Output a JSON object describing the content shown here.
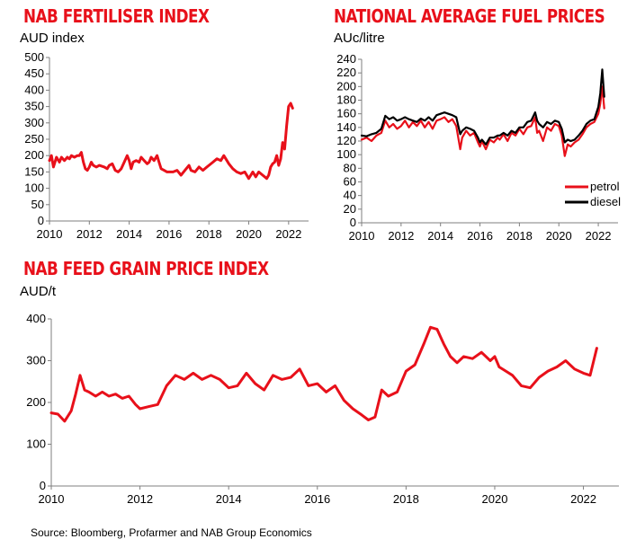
{
  "charts": [
    {
      "title": "NAB FERTILISER INDEX",
      "unit": "AUD index"
    },
    {
      "title": "NATIONAL AVERAGE FUEL PRICES",
      "unit": "AUc/litre"
    },
    {
      "title": "NAB FEED GRAIN PRICE INDEX",
      "unit": "AUD/t"
    }
  ],
  "source": "Source: Bloomberg, Profarmer and NAB Group Economics",
  "colors": {
    "title": "#e8101a",
    "series_red": "#e8101a",
    "series_black": "#000000",
    "axis": "#7f7f7f"
  },
  "chart_data": [
    {
      "type": "line",
      "title": "NAB FERTILISER INDEX",
      "ylabel": "AUD index",
      "xlim": [
        2010,
        2023
      ],
      "ylim": [
        0,
        500
      ],
      "x_ticks": [
        "2010",
        "2012",
        "2014",
        "2016",
        "2018",
        "2020",
        "2022"
      ],
      "y_ticks": [
        "0",
        "50",
        "100",
        "150",
        "200",
        "250",
        "300",
        "350",
        "400",
        "450",
        "500"
      ],
      "series": [
        {
          "color": "#e8101a",
          "x": [
            2010.0,
            2010.1,
            2010.2,
            2010.35,
            2010.5,
            2010.6,
            2010.75,
            2010.9,
            2011.0,
            2011.1,
            2011.25,
            2011.4,
            2011.5,
            2011.6,
            2011.7,
            2011.8,
            2011.9,
            2012.0,
            2012.1,
            2012.2,
            2012.35,
            2012.5,
            2012.6,
            2012.75,
            2012.9,
            2013.0,
            2013.15,
            2013.3,
            2013.45,
            2013.6,
            2013.75,
            2013.9,
            2014.0,
            2014.1,
            2014.2,
            2014.35,
            2014.5,
            2014.6,
            2014.75,
            2014.9,
            2015.0,
            2015.1,
            2015.25,
            2015.4,
            2015.5,
            2015.6,
            2015.75,
            2015.9,
            2016.0,
            2016.2,
            2016.4,
            2016.6,
            2016.8,
            2017.0,
            2017.1,
            2017.3,
            2017.5,
            2017.7,
            2017.9,
            2018.0,
            2018.2,
            2018.4,
            2018.6,
            2018.75,
            2018.9,
            2019.0,
            2019.2,
            2019.4,
            2019.6,
            2019.8,
            2020.0,
            2020.1,
            2020.2,
            2020.35,
            2020.5,
            2020.7,
            2020.9,
            2021.0,
            2021.1,
            2021.2,
            2021.3,
            2021.4,
            2021.5,
            2021.6,
            2021.7,
            2021.8,
            2021.9,
            2022.0,
            2022.1,
            2022.2
          ],
          "y": [
            185,
            200,
            165,
            195,
            180,
            195,
            185,
            195,
            190,
            200,
            195,
            200,
            200,
            210,
            180,
            160,
            155,
            165,
            180,
            170,
            165,
            170,
            168,
            165,
            160,
            170,
            175,
            155,
            150,
            160,
            180,
            200,
            185,
            160,
            180,
            185,
            180,
            195,
            185,
            175,
            180,
            195,
            185,
            200,
            180,
            160,
            155,
            150,
            150,
            150,
            155,
            140,
            155,
            170,
            155,
            150,
            165,
            155,
            165,
            170,
            180,
            190,
            185,
            200,
            185,
            175,
            160,
            150,
            145,
            150,
            130,
            140,
            150,
            135,
            150,
            140,
            130,
            140,
            165,
            175,
            180,
            200,
            170,
            190,
            240,
            220,
            290,
            350,
            360,
            345
          ]
        }
      ]
    },
    {
      "type": "line",
      "title": "NATIONAL AVERAGE FUEL PRICES",
      "ylabel": "AUc/litre",
      "xlim": [
        2010,
        2023
      ],
      "ylim": [
        0,
        240
      ],
      "x_ticks": [
        "2010",
        "2012",
        "2014",
        "2016",
        "2018",
        "2020",
        "2022"
      ],
      "y_ticks": [
        "0",
        "20",
        "40",
        "60",
        "80",
        "100",
        "120",
        "140",
        "160",
        "180",
        "200",
        "220",
        "240"
      ],
      "legend_position": "right",
      "series": [
        {
          "name": "petrol",
          "color": "#e8101a",
          "x": [
            2010.0,
            2010.25,
            2010.5,
            2010.75,
            2011.0,
            2011.2,
            2011.4,
            2011.6,
            2011.8,
            2012.0,
            2012.2,
            2012.4,
            2012.6,
            2012.8,
            2013.0,
            2013.2,
            2013.4,
            2013.6,
            2013.8,
            2014.0,
            2014.2,
            2014.4,
            2014.6,
            2014.8,
            2015.0,
            2015.1,
            2015.3,
            2015.5,
            2015.7,
            2015.9,
            2016.0,
            2016.1,
            2016.3,
            2016.5,
            2016.7,
            2016.9,
            2017.0,
            2017.2,
            2017.4,
            2017.6,
            2017.8,
            2018.0,
            2018.2,
            2018.4,
            2018.6,
            2018.8,
            2018.9,
            2019.0,
            2019.2,
            2019.4,
            2019.6,
            2019.8,
            2020.0,
            2020.15,
            2020.3,
            2020.45,
            2020.6,
            2020.8,
            2021.0,
            2021.2,
            2021.4,
            2021.6,
            2021.8,
            2022.0,
            2022.1,
            2022.2,
            2022.3
          ],
          "y": [
            122,
            125,
            120,
            128,
            132,
            150,
            140,
            145,
            138,
            142,
            150,
            140,
            148,
            142,
            150,
            140,
            148,
            138,
            150,
            152,
            155,
            148,
            152,
            142,
            108,
            125,
            135,
            128,
            132,
            118,
            112,
            120,
            108,
            122,
            118,
            125,
            122,
            130,
            120,
            132,
            128,
            138,
            130,
            140,
            142,
            155,
            132,
            135,
            120,
            140,
            135,
            145,
            142,
            128,
            98,
            115,
            112,
            118,
            122,
            130,
            140,
            145,
            148,
            160,
            175,
            200,
            168
          ]
        },
        {
          "name": "diesel",
          "color": "#000000",
          "x": [
            2010.0,
            2010.25,
            2010.5,
            2010.75,
            2011.0,
            2011.2,
            2011.4,
            2011.6,
            2011.8,
            2012.0,
            2012.2,
            2012.4,
            2012.6,
            2012.8,
            2013.0,
            2013.2,
            2013.4,
            2013.6,
            2013.8,
            2014.0,
            2014.2,
            2014.4,
            2014.6,
            2014.8,
            2015.0,
            2015.1,
            2015.3,
            2015.5,
            2015.7,
            2015.9,
            2016.0,
            2016.1,
            2016.3,
            2016.5,
            2016.7,
            2016.9,
            2017.0,
            2017.2,
            2017.4,
            2017.6,
            2017.8,
            2018.0,
            2018.2,
            2018.4,
            2018.6,
            2018.8,
            2018.9,
            2019.0,
            2019.2,
            2019.4,
            2019.6,
            2019.8,
            2020.0,
            2020.15,
            2020.3,
            2020.45,
            2020.6,
            2020.8,
            2021.0,
            2021.2,
            2021.4,
            2021.6,
            2021.8,
            2022.0,
            2022.1,
            2022.2,
            2022.3
          ],
          "y": [
            128,
            127,
            130,
            132,
            138,
            157,
            152,
            155,
            150,
            152,
            155,
            152,
            150,
            148,
            153,
            150,
            155,
            150,
            158,
            160,
            162,
            160,
            158,
            155,
            130,
            135,
            140,
            138,
            135,
            125,
            118,
            122,
            115,
            125,
            125,
            128,
            128,
            132,
            128,
            135,
            132,
            140,
            140,
            148,
            150,
            162,
            150,
            145,
            140,
            148,
            145,
            150,
            148,
            138,
            118,
            122,
            120,
            122,
            128,
            135,
            145,
            150,
            152,
            170,
            190,
            225,
            185
          ]
        }
      ]
    },
    {
      "type": "line",
      "title": "NAB FEED GRAIN PRICE INDEX",
      "ylabel": "AUD/t",
      "xlim": [
        2010,
        2022.8
      ],
      "ylim": [
        0,
        400
      ],
      "x_ticks": [
        "2010",
        "2012",
        "2014",
        "2016",
        "2018",
        "2020",
        "2022"
      ],
      "y_ticks": [
        "0",
        "100",
        "200",
        "300",
        "400"
      ],
      "series": [
        {
          "color": "#e8101a",
          "x": [
            2010.0,
            2010.15,
            2010.3,
            2010.45,
            2010.55,
            2010.65,
            2010.75,
            2010.85,
            2011.0,
            2011.15,
            2011.3,
            2011.45,
            2011.6,
            2011.75,
            2011.9,
            2012.0,
            2012.2,
            2012.4,
            2012.6,
            2012.8,
            2013.0,
            2013.2,
            2013.4,
            2013.6,
            2013.8,
            2014.0,
            2014.2,
            2014.4,
            2014.6,
            2014.8,
            2015.0,
            2015.2,
            2015.4,
            2015.6,
            2015.8,
            2016.0,
            2016.2,
            2016.4,
            2016.6,
            2016.8,
            2017.0,
            2017.15,
            2017.3,
            2017.45,
            2017.6,
            2017.8,
            2018.0,
            2018.2,
            2018.4,
            2018.55,
            2018.7,
            2018.85,
            2019.0,
            2019.15,
            2019.3,
            2019.5,
            2019.7,
            2019.9,
            2020.0,
            2020.1,
            2020.25,
            2020.4,
            2020.6,
            2020.8,
            2021.0,
            2021.2,
            2021.4,
            2021.6,
            2021.8,
            2022.0,
            2022.15,
            2022.3
          ],
          "y": [
            175,
            172,
            155,
            180,
            220,
            265,
            230,
            225,
            215,
            225,
            215,
            220,
            210,
            215,
            195,
            185,
            190,
            195,
            240,
            265,
            255,
            270,
            255,
            265,
            255,
            235,
            240,
            270,
            245,
            230,
            265,
            255,
            260,
            280,
            240,
            245,
            225,
            240,
            205,
            185,
            170,
            158,
            165,
            230,
            215,
            225,
            275,
            290,
            340,
            380,
            375,
            340,
            310,
            295,
            310,
            305,
            320,
            300,
            310,
            285,
            275,
            265,
            240,
            235,
            260,
            275,
            285,
            300,
            280,
            270,
            265,
            330
          ]
        }
      ]
    }
  ]
}
